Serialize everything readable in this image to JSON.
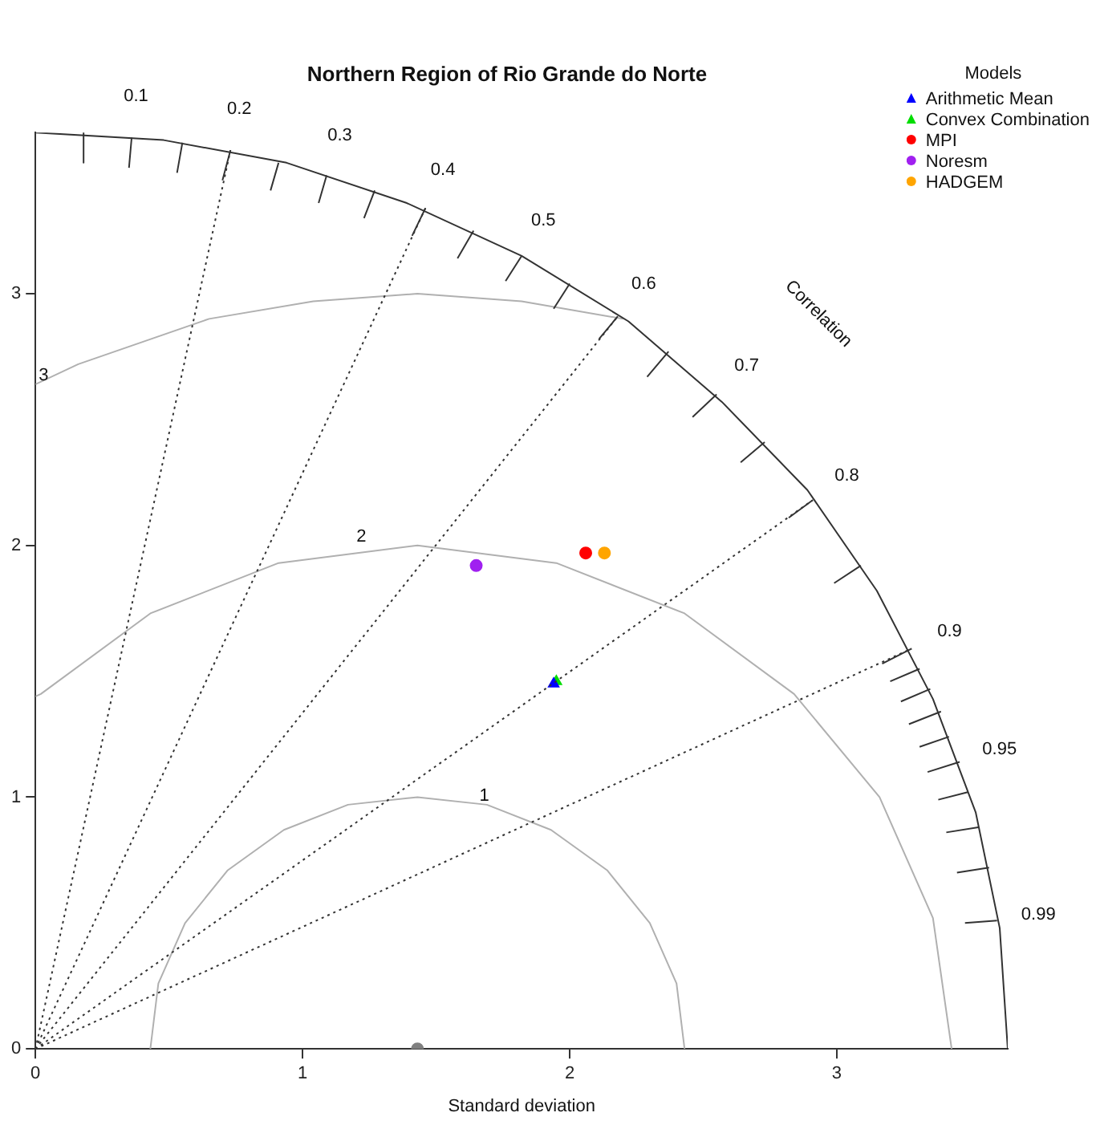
{
  "chart_data": {
    "type": "scatter",
    "title": "Northern Region of Rio Grande do Norte",
    "xlabel": "Standard deviation",
    "legend_title": "Models",
    "legend": "top right",
    "grid": false,
    "xlim": [
      0,
      3.64
    ],
    "ylim": [
      0,
      3.64
    ],
    "xticks": [
      0,
      1,
      2,
      3
    ],
    "yticks": [
      0,
      1,
      2,
      3
    ],
    "series": [
      {
        "type": "line",
        "color": "#333333",
        "line_style": "solid",
        "x": [
          0,
          0.48,
          0.94,
          1.39,
          1.82,
          2.22,
          2.57,
          2.89,
          3.15,
          3.36,
          3.52,
          3.61,
          3.64
        ],
        "values": [
          3.64,
          3.61,
          3.52,
          3.36,
          3.15,
          2.89,
          2.57,
          2.22,
          1.82,
          1.39,
          0.94,
          0.48,
          0
        ]
      },
      {
        "type": "line",
        "color": "#333333",
        "line_style": "solid",
        "x": [
          0.18,
          0.18,
          null,
          0.36,
          0.35,
          null,
          0.55,
          0.53,
          null,
          0.73,
          0.7,
          null,
          0.91,
          0.88,
          null,
          1.09,
          1.06,
          null,
          1.27,
          1.23,
          null,
          1.46,
          1.41,
          null,
          1.64,
          1.58,
          null,
          1.82,
          1.76,
          null,
          2.0,
          1.94,
          null,
          2.18,
          2.11,
          null,
          2.37,
          2.29,
          null,
          2.55,
          2.46,
          null,
          2.73,
          2.64,
          null,
          2.91,
          2.82,
          null,
          3.09,
          2.99,
          null,
          3.28,
          3.17,
          null,
          3.31,
          3.2,
          null,
          3.35,
          3.24,
          null,
          3.39,
          3.27,
          null,
          3.42,
          3.31,
          null,
          3.46,
          3.34,
          null,
          3.49,
          3.38,
          null,
          3.53,
          3.41,
          null,
          3.57,
          3.45,
          null,
          3.6,
          3.48
        ],
        "values": [
          3.64,
          3.52,
          null,
          3.62,
          3.5,
          null,
          3.6,
          3.48,
          null,
          3.57,
          3.45,
          null,
          3.52,
          3.41,
          null,
          3.47,
          3.36,
          null,
          3.41,
          3.3,
          null,
          3.34,
          3.23,
          null,
          3.25,
          3.14,
          null,
          3.15,
          3.05,
          null,
          3.04,
          2.94,
          null,
          2.91,
          2.82,
          null,
          2.77,
          2.67,
          null,
          2.6,
          2.51,
          null,
          2.41,
          2.33,
          null,
          2.18,
          2.11,
          null,
          1.92,
          1.85,
          null,
          1.59,
          1.53,
          null,
          1.51,
          1.46,
          null,
          1.43,
          1.38,
          null,
          1.34,
          1.29,
          null,
          1.24,
          1.2,
          null,
          1.14,
          1.1,
          null,
          1.02,
          0.99,
          null,
          0.88,
          0.86,
          null,
          0.72,
          0.7,
          null,
          0.51,
          0.5
        ]
      },
      {
        "type": "line",
        "color": "#333333",
        "line_style": "dotted",
        "x": [
          0,
          0.73,
          null,
          0,
          1.46,
          null,
          0,
          2.18,
          null,
          0,
          2.91,
          null,
          0,
          3.28
        ],
        "values": [
          0,
          3.57,
          null,
          0,
          3.34,
          null,
          0,
          2.91,
          null,
          0,
          2.18,
          null,
          0,
          1.59
        ]
      },
      {
        "type": "line",
        "color": "#b0b0b0",
        "line_style": "solid",
        "x": [
          2.43,
          2.4,
          2.3,
          2.14,
          1.93,
          1.69,
          1.43,
          1.17,
          0.93,
          0.72,
          0.56,
          0.46,
          0.43,
          null,
          3.43,
          3.36,
          3.16,
          2.84,
          2.43,
          1.95,
          1.43,
          0.91,
          0.43,
          0.02,
          0,
          null,
          2.2,
          1.82,
          1.43,
          1.04,
          0.65,
          0.16,
          0
        ],
        "values": [
          0,
          0.26,
          0.5,
          0.71,
          0.87,
          0.97,
          1,
          0.97,
          0.87,
          0.71,
          0.5,
          0.26,
          0,
          null,
          0,
          0.52,
          1,
          1.41,
          1.73,
          1.93,
          2,
          1.93,
          1.73,
          1.41,
          1.4,
          null,
          2.9,
          2.97,
          3,
          2.97,
          2.9,
          2.72,
          2.64
        ]
      },
      {
        "type": "scatter",
        "color": "#808080",
        "marker": "circle",
        "x": [
          1.43
        ],
        "values": [
          0
        ]
      },
      {
        "name": "Arithmetic Mean",
        "color": "#0000ff",
        "marker": "triangle",
        "x": [
          1.94
        ],
        "values": [
          1.45
        ]
      },
      {
        "name": "Convex Combination",
        "color": "#00dd00",
        "marker": "triangle",
        "x": [
          1.95
        ],
        "values": [
          1.46
        ]
      },
      {
        "name": "MPI",
        "color": "#ff0000",
        "marker": "circle",
        "x": [
          2.06
        ],
        "values": [
          1.97
        ]
      },
      {
        "name": "Noresm",
        "color": "#a020f0",
        "marker": "circle",
        "x": [
          1.65
        ],
        "values": [
          1.92
        ]
      },
      {
        "name": "HADGEM",
        "color": "#ffa500",
        "marker": "circle",
        "x": [
          2.13
        ],
        "values": [
          1.97
        ]
      }
    ],
    "annotations": [
      {
        "text": "0.1",
        "x": 0.36,
        "y": 3.62
      },
      {
        "text": "0.2",
        "x": 0.73,
        "y": 3.57
      },
      {
        "text": "0.3",
        "x": 1.09,
        "y": 3.47
      },
      {
        "text": "0.4",
        "x": 1.46,
        "y": 3.34
      },
      {
        "text": "0.5",
        "x": 1.82,
        "y": 3.15
      },
      {
        "text": "0.6",
        "x": 2.18,
        "y": 2.91
      },
      {
        "text": "0.7",
        "x": 2.55,
        "y": 2.6
      },
      {
        "text": "0.8",
        "x": 2.91,
        "y": 2.18
      },
      {
        "text": "0.9",
        "x": 3.28,
        "y": 1.59
      },
      {
        "text": "0.95",
        "x": 3.46,
        "y": 1.14
      },
      {
        "text": "0.99",
        "x": 3.6,
        "y": 0.51
      },
      {
        "text": "1",
        "x": 1.68,
        "y": 0.96
      },
      {
        "text": "2",
        "x": 1.22,
        "y": 1.99
      },
      {
        "text": "3",
        "x": 0,
        "y": 2.63
      },
      "Correlation"
    ]
  }
}
